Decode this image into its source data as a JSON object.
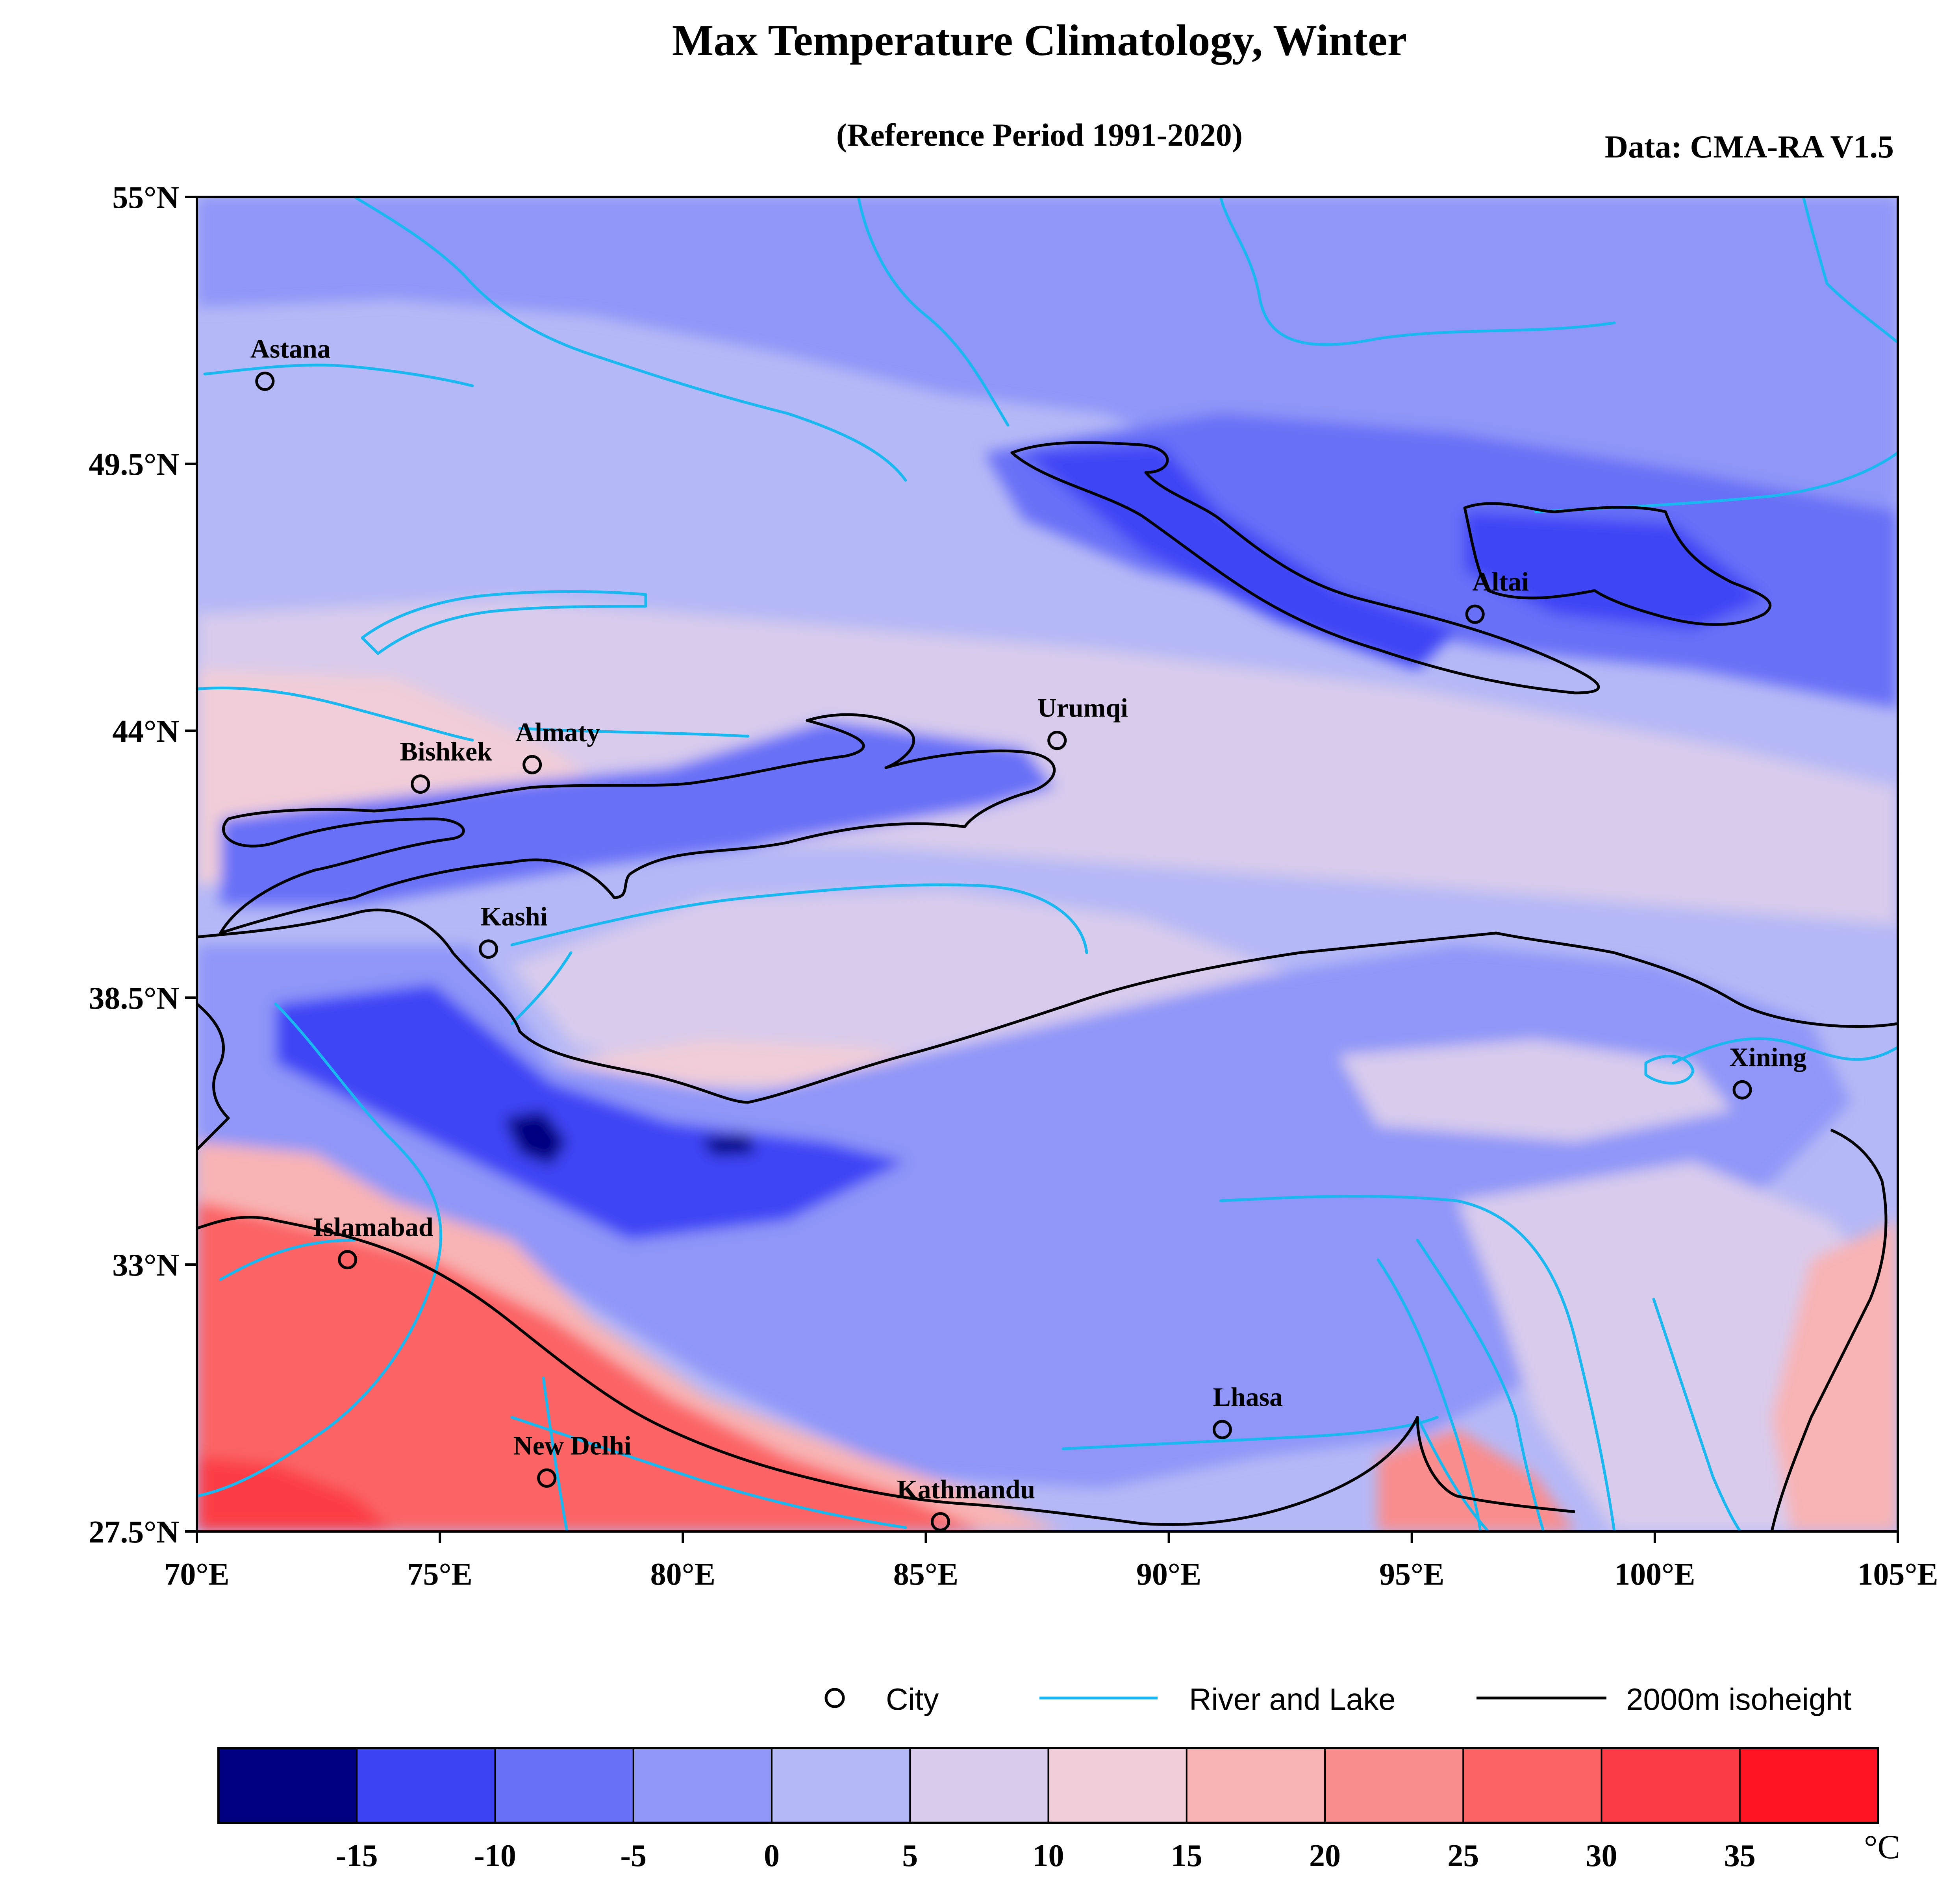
{
  "title": "Max Temperature Climatology, Winter",
  "subtitle": "(Reference Period 1991-2020)",
  "source": "Data: CMA-RA V1.5",
  "map": {
    "projection": "lat-lon",
    "lon_range": [
      70,
      105
    ],
    "lat_range": [
      27.5,
      55
    ],
    "lat_ticks": [
      {
        "value": 55,
        "label": "55°N"
      },
      {
        "value": 49.5,
        "label": "49.5°N"
      },
      {
        "value": 44,
        "label": "44°N"
      },
      {
        "value": 38.5,
        "label": "38.5°N"
      },
      {
        "value": 33,
        "label": "33°N"
      },
      {
        "value": 27.5,
        "label": "27.5°N"
      }
    ],
    "lon_ticks": [
      {
        "value": 70,
        "label": "70°E"
      },
      {
        "value": 75,
        "label": "75°E"
      },
      {
        "value": 80,
        "label": "80°E"
      },
      {
        "value": 85,
        "label": "85°E"
      },
      {
        "value": 90,
        "label": "90°E"
      },
      {
        "value": 95,
        "label": "95°E"
      },
      {
        "value": 100,
        "label": "100°E"
      },
      {
        "value": 105,
        "label": "105°E"
      }
    ]
  },
  "cities": [
    {
      "name": "Astana",
      "lon": 71.4,
      "lat": 51.2
    },
    {
      "name": "Almaty",
      "lon": 76.9,
      "lat": 43.3
    },
    {
      "name": "Bishkek",
      "lon": 74.6,
      "lat": 42.9
    },
    {
      "name": "Urumqi",
      "lon": 87.7,
      "lat": 43.8
    },
    {
      "name": "Altai",
      "lon": 96.3,
      "lat": 46.4
    },
    {
      "name": "Kashi",
      "lon": 76.0,
      "lat": 39.5
    },
    {
      "name": "Xining",
      "lon": 101.8,
      "lat": 36.6
    },
    {
      "name": "Islamabad",
      "lon": 73.1,
      "lat": 33.1
    },
    {
      "name": "Lhasa",
      "lon": 91.1,
      "lat": 29.6
    },
    {
      "name": "New Delhi",
      "lon": 77.2,
      "lat": 28.6
    },
    {
      "name": "Kathmandu",
      "lon": 85.3,
      "lat": 27.7
    }
  ],
  "legend": {
    "city": "City",
    "river": "River and Lake",
    "isoheight": "2000m isoheight"
  },
  "colorbar": {
    "unit": "°C",
    "colors": [
      "#000080",
      "#3d44f5",
      "#6770f7",
      "#8f96f8",
      "#b5b8f6",
      "#d8cbec",
      "#f0cdd8",
      "#f8b3b4",
      "#fa8d8d",
      "#fb6365",
      "#fc3c45",
      "#ff1423"
    ],
    "labels": [
      "-15",
      "-10",
      "-5",
      "0",
      "5",
      "10",
      "15",
      "20",
      "25",
      "30",
      "35"
    ]
  },
  "colors": {
    "river": "#1ab8f0",
    "isoheight": "#000000"
  }
}
